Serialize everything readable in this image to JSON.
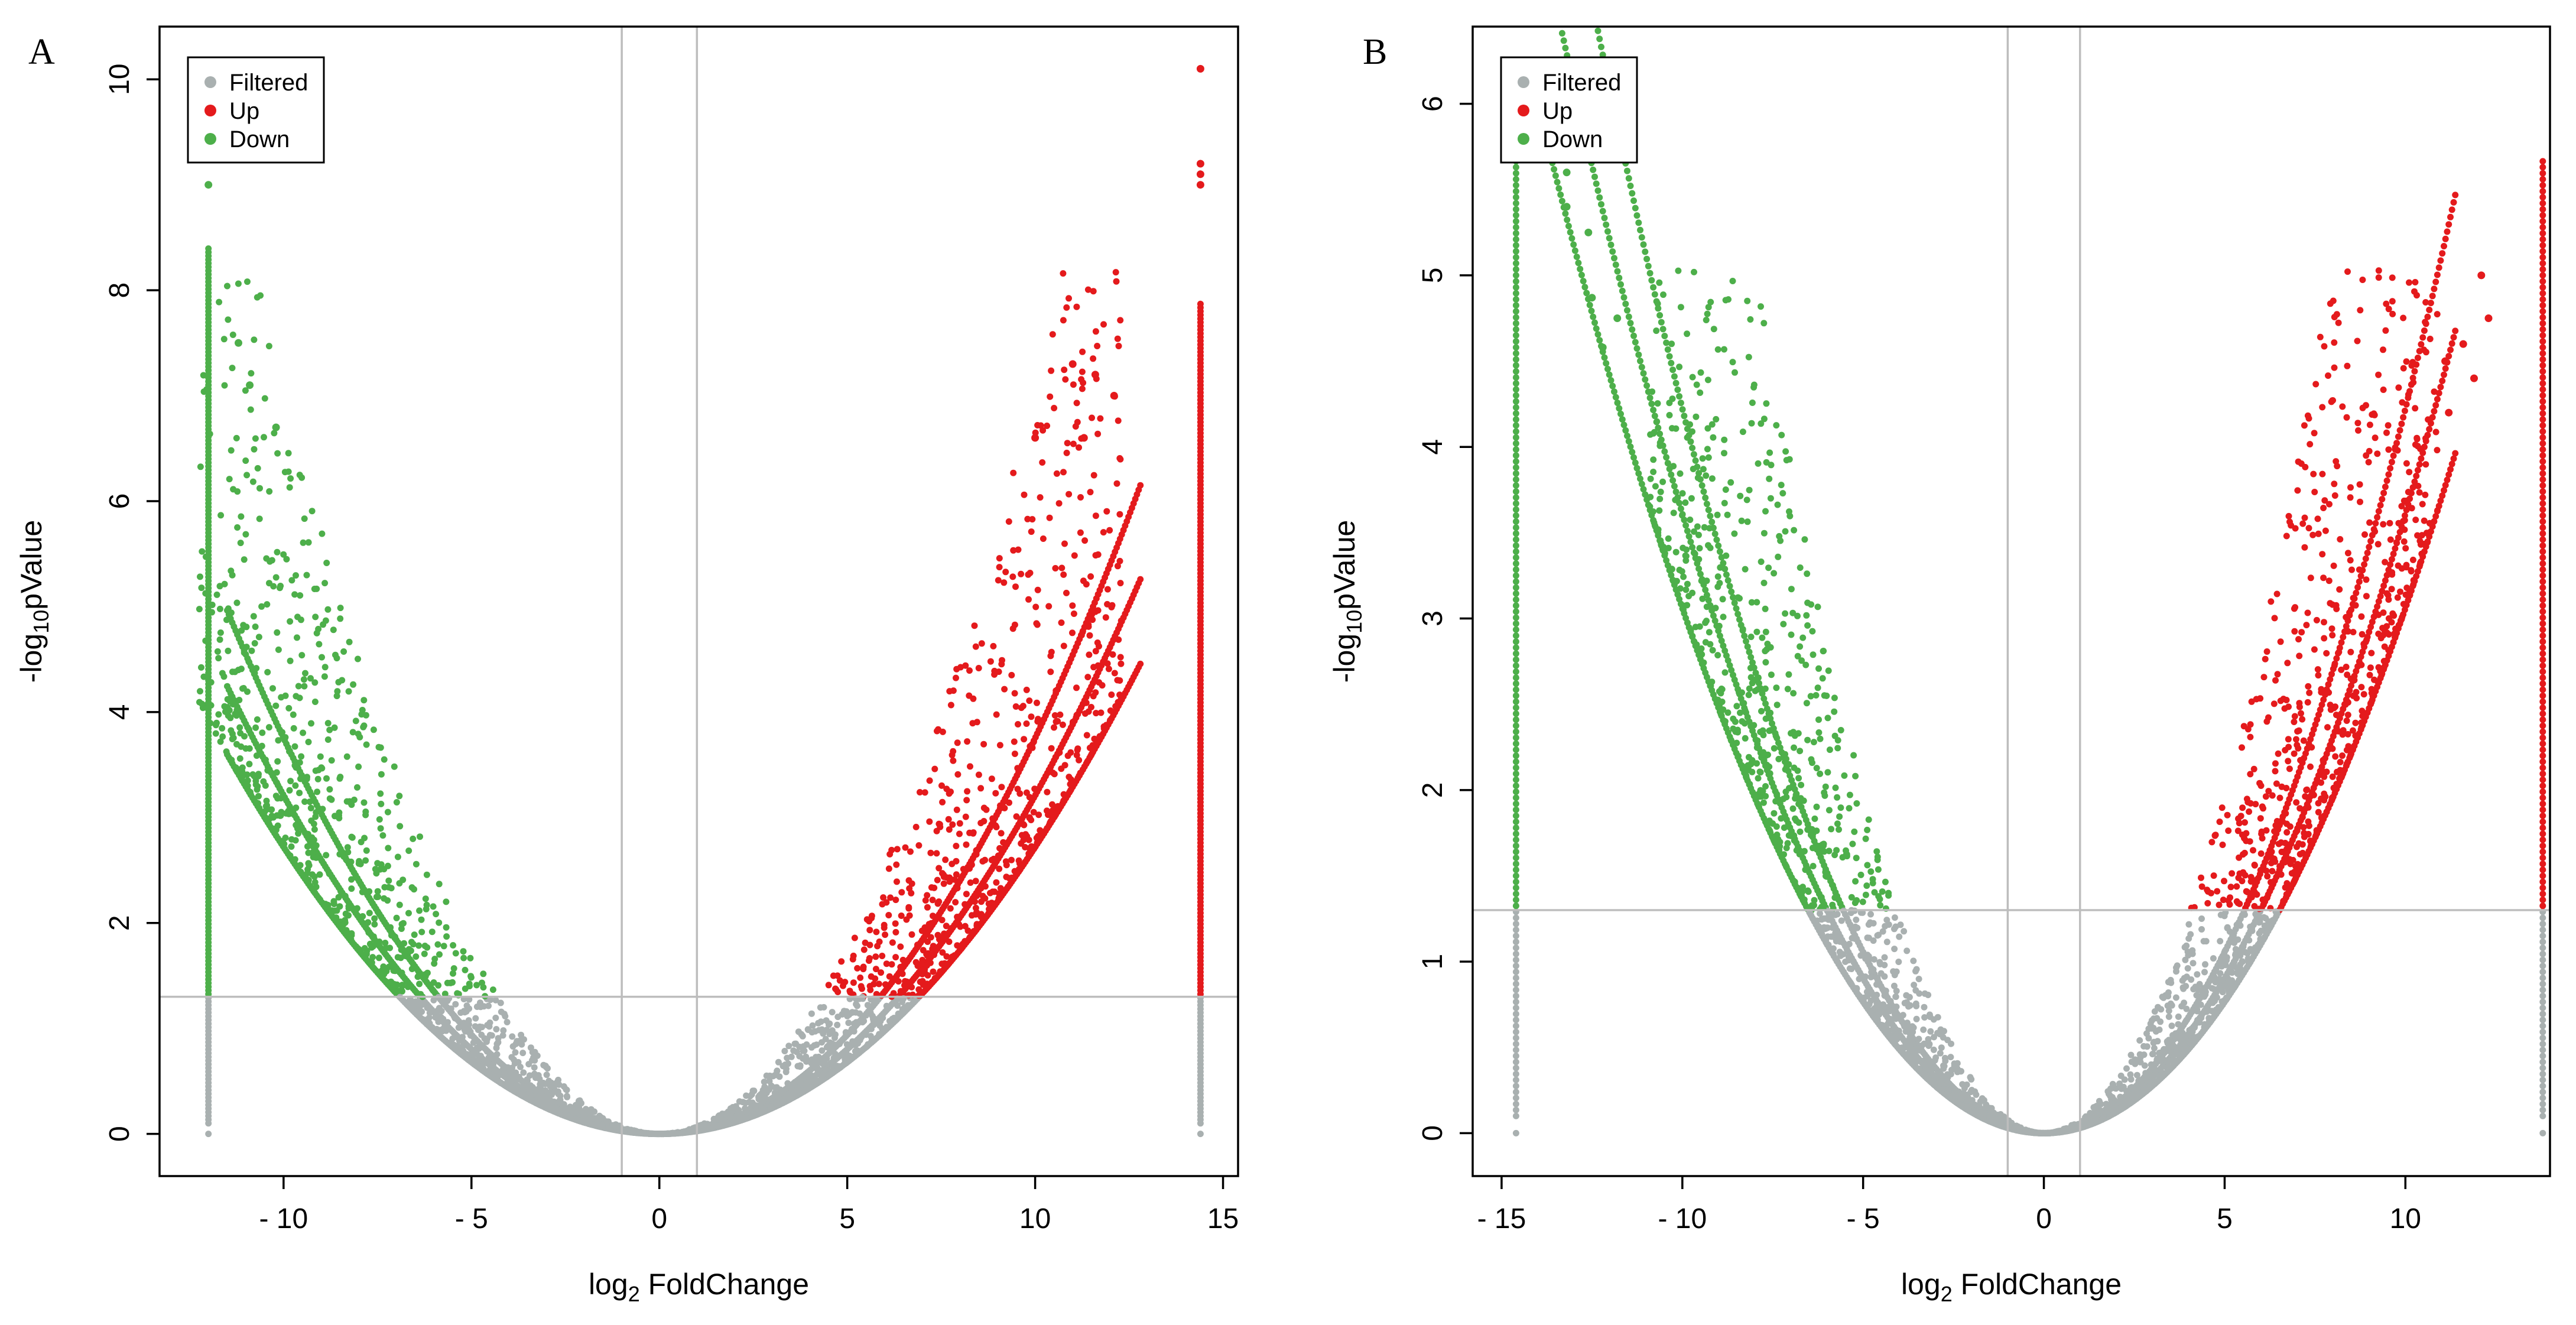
{
  "colors": {
    "filtered": "#A9B0B0",
    "up": "#E41A1C",
    "down": "#4DAF4A",
    "refline": "#BDBDBD",
    "axis": "#000000"
  },
  "legend": {
    "entries": [
      {
        "label": "Filtered",
        "color": "#A9B0B0"
      },
      {
        "label": "Up",
        "color": "#E41A1C"
      },
      {
        "label": "Down",
        "color": "#4DAF4A"
      }
    ]
  },
  "chart_data": [
    {
      "panel_label": "A",
      "type": "scatter",
      "title": "",
      "xlabel": {
        "base": "log",
        "sub": "2",
        "rest": " FoldChange"
      },
      "ylabel": {
        "pre": "-log",
        "sub": "10",
        "rest": "pValue"
      },
      "xlim": [
        -13.3,
        15.4
      ],
      "ylim": [
        -0.4,
        10.5
      ],
      "x_ticks": [
        -10,
        -5,
        0,
        5,
        10,
        15
      ],
      "x_tick_labels": [
        "- 10",
        "- 5",
        "0",
        "5",
        "10",
        "15"
      ],
      "y_ticks": [
        0,
        2,
        4,
        6,
        8,
        10
      ],
      "y_tick_labels": [
        "0",
        "2",
        "4",
        "6",
        "8",
        "10"
      ],
      "vlines": [
        -1,
        1
      ],
      "hline": 1.3,
      "pval_threshold_neglog10": 1.3,
      "fc_threshold_log2": 1,
      "vertical_strips": {
        "left_x": -12,
        "left_max_y": 8.4,
        "right_x": 14.4,
        "right_max_y": 7.9
      },
      "v_curve_scale": 0.032,
      "extra_points": [
        {
          "x": -12,
          "y": 9.0,
          "group": "Down"
        },
        {
          "x": -11.2,
          "y": 7.5,
          "group": "Down"
        },
        {
          "x": -10.2,
          "y": 6.7,
          "group": "Down"
        },
        {
          "x": -10.9,
          "y": 7.1,
          "group": "Down"
        },
        {
          "x": 14.4,
          "y": 10.1,
          "group": "Up"
        },
        {
          "x": 14.4,
          "y": 9.2,
          "group": "Up"
        },
        {
          "x": 14.4,
          "y": 9.1,
          "group": "Up"
        },
        {
          "x": 14.4,
          "y": 9.0,
          "group": "Up"
        },
        {
          "x": 11.0,
          "y": 7.3,
          "group": "Up"
        },
        {
          "x": 11.6,
          "y": 7.2,
          "group": "Up"
        },
        {
          "x": 12.1,
          "y": 7.0,
          "group": "Up"
        },
        {
          "x": 11.3,
          "y": 6.6,
          "group": "Up"
        },
        {
          "x": 10.0,
          "y": 6.6,
          "group": "Up"
        }
      ]
    },
    {
      "panel_label": "B",
      "type": "scatter",
      "title": "",
      "xlabel": {
        "base": "log",
        "sub": "2",
        "rest": " FoldChange"
      },
      "ylabel": {
        "pre": "-log",
        "sub": "10",
        "rest": "pValue"
      },
      "xlim": [
        -15.8,
        14.0
      ],
      "ylim": [
        -0.25,
        6.45
      ],
      "x_ticks": [
        -15,
        -10,
        -5,
        0,
        5,
        10
      ],
      "x_tick_labels": [
        "- 15",
        "- 10",
        "- 5",
        "0",
        "5",
        "10"
      ],
      "y_ticks": [
        0,
        1,
        2,
        3,
        4,
        5,
        6
      ],
      "y_tick_labels": [
        "0",
        "1",
        "2",
        "3",
        "4",
        "5",
        "6"
      ],
      "vlines": [
        -1,
        1
      ],
      "hline": 1.3,
      "pval_threshold_neglog10": 1.3,
      "fc_threshold_log2": 1,
      "vertical_strips": {
        "left_x": -14.6,
        "left_max_y": 5.7,
        "right_x": 13.8,
        "right_max_y": 5.7
      },
      "v_curve_scale": 0.036,
      "extra_points": [
        {
          "x": -13.3,
          "y": 5.9,
          "group": "Down"
        },
        {
          "x": -13.2,
          "y": 5.6,
          "group": "Down"
        },
        {
          "x": -13.2,
          "y": 5.4,
          "group": "Down"
        },
        {
          "x": -12.6,
          "y": 5.25,
          "group": "Down"
        },
        {
          "x": -12.5,
          "y": 4.87,
          "group": "Down"
        },
        {
          "x": -12.2,
          "y": 4.58,
          "group": "Down"
        },
        {
          "x": -11.8,
          "y": 4.75,
          "group": "Down"
        },
        {
          "x": 12.1,
          "y": 5.0,
          "group": "Up"
        },
        {
          "x": 12.3,
          "y": 4.75,
          "group": "Up"
        },
        {
          "x": 11.6,
          "y": 4.6,
          "group": "Up"
        },
        {
          "x": 11.1,
          "y": 4.5,
          "group": "Up"
        },
        {
          "x": 11.9,
          "y": 4.4,
          "group": "Up"
        },
        {
          "x": 11.2,
          "y": 4.2,
          "group": "Up"
        }
      ]
    }
  ]
}
